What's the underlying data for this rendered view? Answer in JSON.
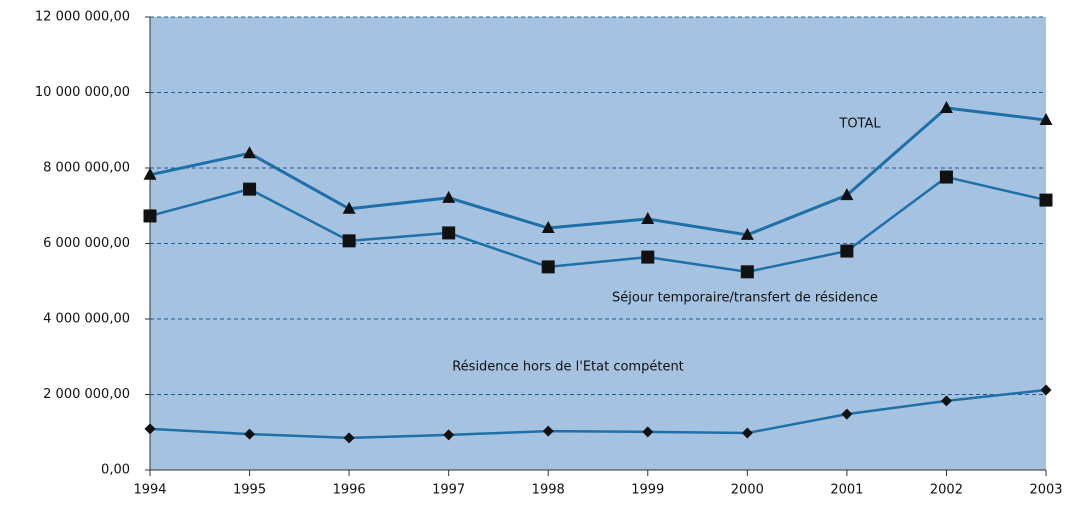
{
  "chart_data": {
    "type": "line",
    "categories": [
      "1994",
      "1995",
      "1996",
      "1997",
      "1998",
      "1999",
      "2000",
      "2001",
      "2002",
      "2003"
    ],
    "series": [
      {
        "name": "TOTAL",
        "color": "#1f6fa8",
        "marker": "triangle",
        "values": [
          7820000,
          8390000,
          6920000,
          7210000,
          6410000,
          6650000,
          6230000,
          7280000,
          9590000,
          9270000
        ]
      },
      {
        "name": "Séjour temporaire/transfert de résidence",
        "color": "#1f6fa8",
        "marker": "square",
        "values": [
          6730000,
          7440000,
          6070000,
          6280000,
          5380000,
          5640000,
          5250000,
          5800000,
          7760000,
          7150000
        ]
      },
      {
        "name": "Résidence hors de l'Etat compétent",
        "color": "#1f6fa8",
        "marker": "diamond",
        "values": [
          1090000,
          950000,
          850000,
          930000,
          1030000,
          1010000,
          980000,
          1480000,
          1830000,
          2120000
        ]
      }
    ],
    "ylim": [
      0,
      12000000
    ],
    "yticks": [
      {
        "value": 0,
        "label": "0,00"
      },
      {
        "value": 2000000,
        "label": "2 000 000,00"
      },
      {
        "value": 4000000,
        "label": "4 000 000,00"
      },
      {
        "value": 6000000,
        "label": "6 000 000,00"
      },
      {
        "value": 8000000,
        "label": "8 000 000,00"
      },
      {
        "value": 10000000,
        "label": "10 000 000,00"
      },
      {
        "value": 12000000,
        "label": "12 000 000,00"
      }
    ],
    "grid": true,
    "plot_background": "#a5c3e1",
    "grid_color": "#1f5a9a"
  }
}
